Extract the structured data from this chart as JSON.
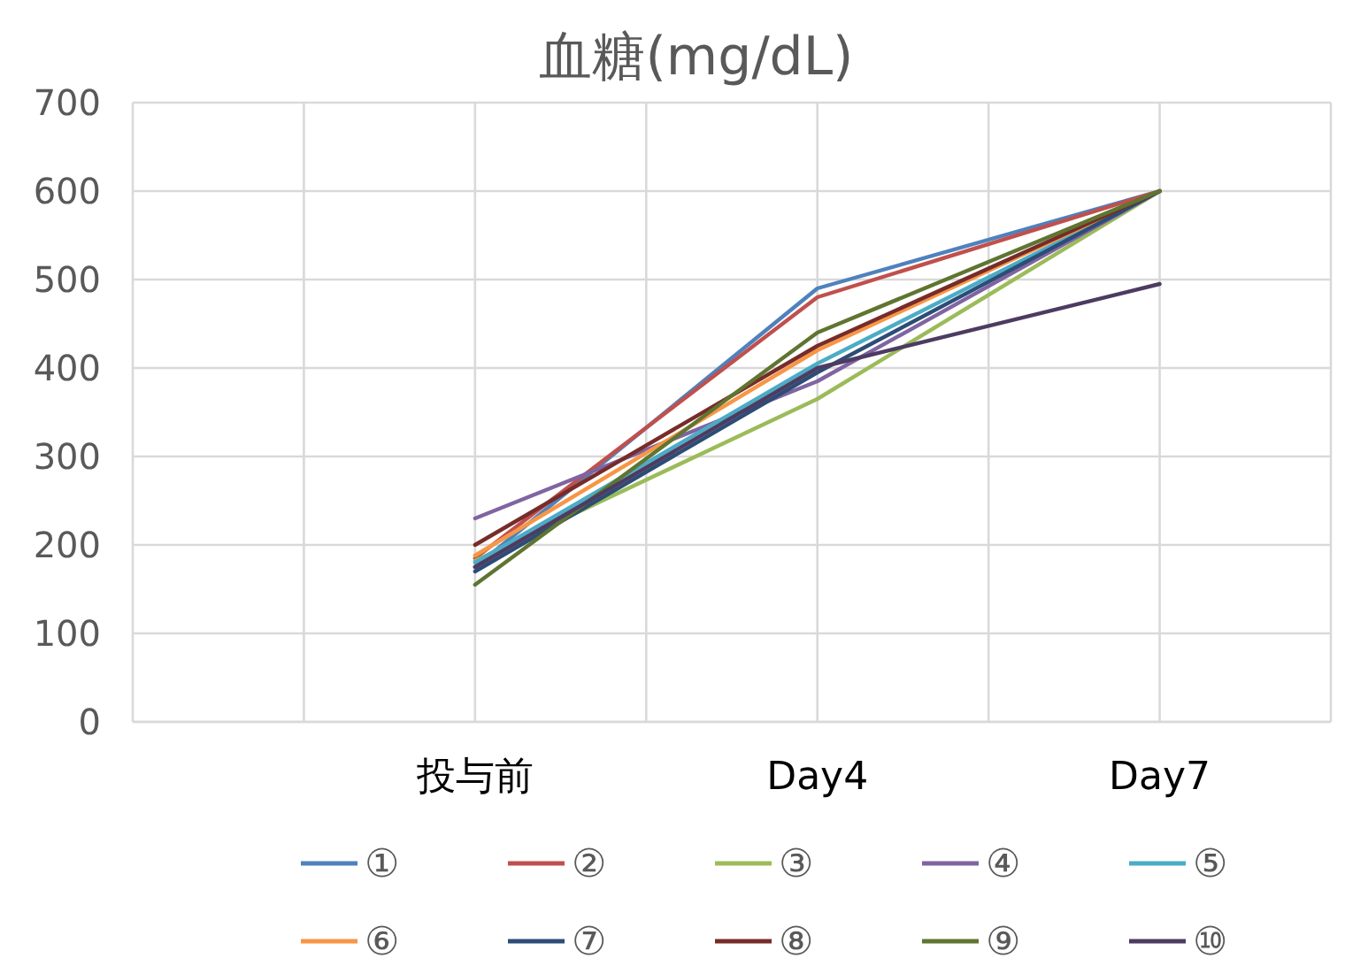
{
  "chart_data": {
    "type": "line",
    "title": "血糖(mg/dL)",
    "categories": [
      null,
      null,
      "投与前",
      null,
      "Day4",
      null,
      "Day7",
      null
    ],
    "ylim": [
      0,
      700
    ],
    "yticks": [
      0,
      100,
      200,
      300,
      400,
      500,
      600,
      700
    ],
    "grid": true,
    "legend": "bottom",
    "marker": "none",
    "series": [
      {
        "name": "①",
        "color": "#4f81bd",
        "values": [
          null,
          null,
          175,
          null,
          490,
          null,
          600,
          null
        ]
      },
      {
        "name": "②",
        "color": "#c0504d",
        "values": [
          null,
          null,
          185,
          null,
          480,
          null,
          600,
          null
        ]
      },
      {
        "name": "③",
        "color": "#9bbb59",
        "values": [
          null,
          null,
          182,
          null,
          365,
          null,
          600,
          null
        ]
      },
      {
        "name": "④",
        "color": "#8064a2",
        "values": [
          null,
          null,
          230,
          null,
          385,
          null,
          600,
          null
        ]
      },
      {
        "name": "⑤",
        "color": "#4bacc6",
        "values": [
          null,
          null,
          180,
          null,
          405,
          null,
          600,
          null
        ]
      },
      {
        "name": "⑥",
        "color": "#f79646",
        "values": [
          null,
          null,
          188,
          null,
          420,
          null,
          600,
          null
        ]
      },
      {
        "name": "⑦",
        "color": "#2c4d75",
        "values": [
          null,
          null,
          170,
          null,
          395,
          null,
          600,
          null
        ]
      },
      {
        "name": "⑧",
        "color": "#772c2a",
        "values": [
          null,
          null,
          200,
          null,
          425,
          null,
          600,
          null
        ]
      },
      {
        "name": "⑨",
        "color": "#5f7530",
        "values": [
          null,
          null,
          155,
          null,
          440,
          null,
          600,
          null
        ]
      },
      {
        "name": "⑩",
        "color": "#4d3b62",
        "values": [
          null,
          null,
          175,
          null,
          400,
          null,
          495,
          null
        ]
      }
    ]
  }
}
